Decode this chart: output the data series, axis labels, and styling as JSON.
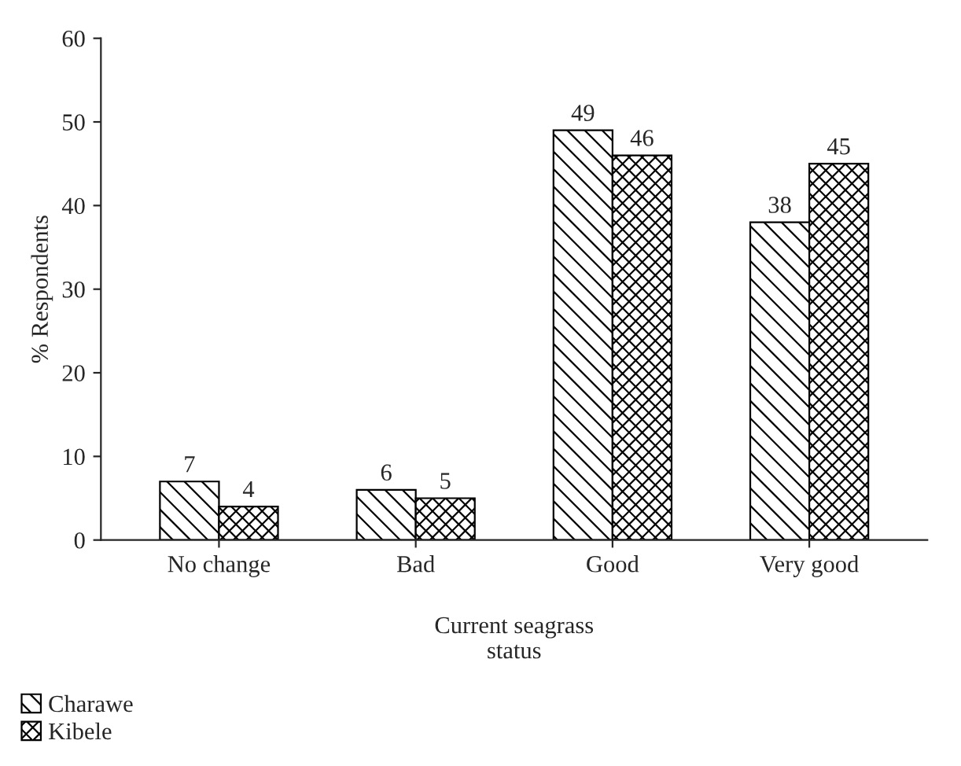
{
  "chart_data": {
    "type": "bar",
    "categories": [
      "No change",
      "Bad",
      "Good",
      "Very good"
    ],
    "series": [
      {
        "name": "Charawe",
        "color": "#000000",
        "values": [
          7,
          6,
          49,
          38
        ]
      },
      {
        "name": "Kibele",
        "color": "#000000",
        "values": [
          4,
          5,
          46,
          45
        ]
      }
    ],
    "xlabel": "Current seagrass\nstatus",
    "ylabel": "% Respondents",
    "ylim": [
      0,
      60
    ],
    "yticks": [
      0,
      10,
      20,
      30,
      40,
      50,
      60
    ],
    "data_labels": true,
    "legend": "bottom left",
    "grid": false
  }
}
